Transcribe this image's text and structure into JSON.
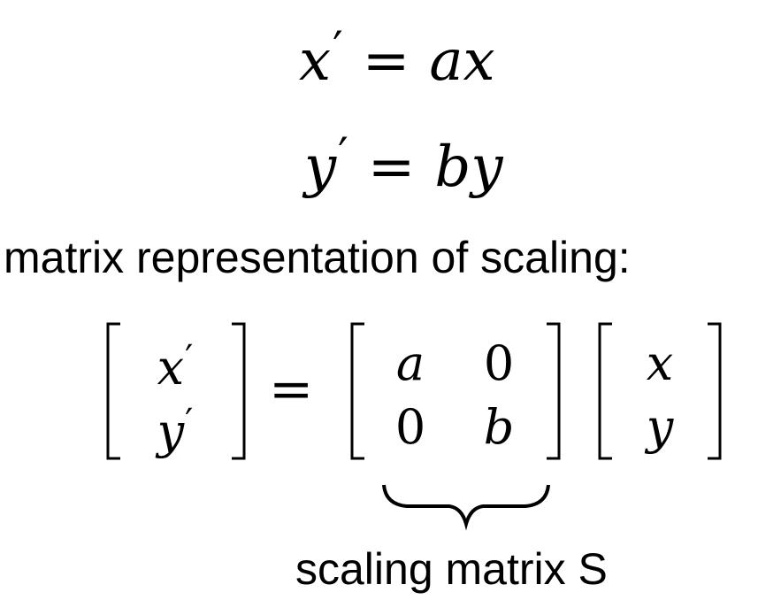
{
  "equations": {
    "line1": {
      "lhs": "x",
      "op": "=",
      "rhs": "ax"
    },
    "line2": {
      "lhs": "y",
      "op": "=",
      "rhs": "by"
    }
  },
  "caption": "matrix representation of scaling:",
  "matrix_equation": {
    "lhs_vector": [
      "x",
      "y"
    ],
    "equals": "=",
    "matrix": [
      [
        "a",
        "0"
      ],
      [
        "0",
        "b"
      ]
    ],
    "rhs_vector": [
      "x",
      "y"
    ]
  },
  "brace_label": "scaling matrix S"
}
